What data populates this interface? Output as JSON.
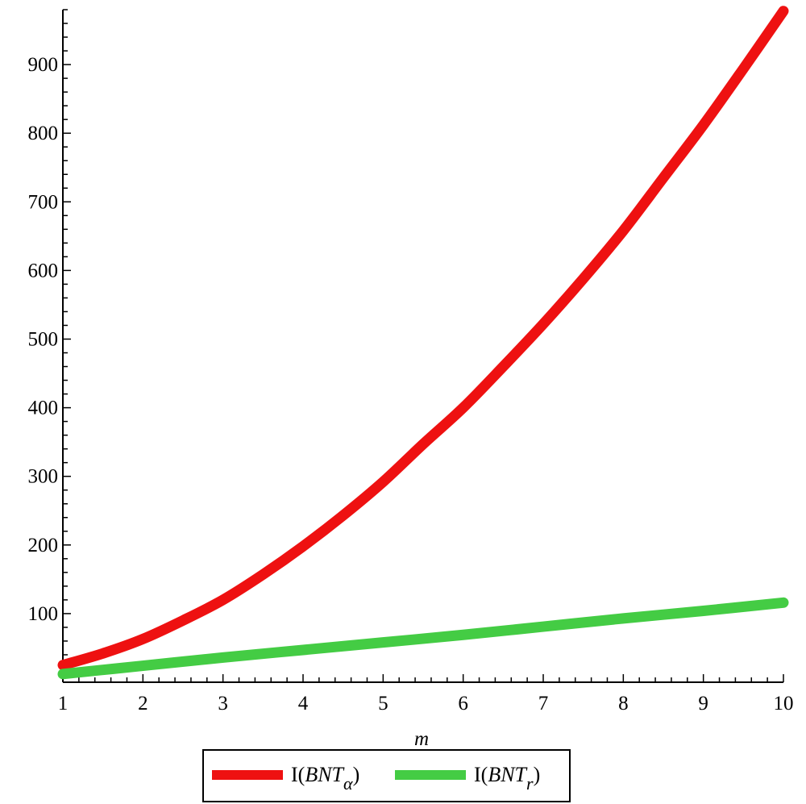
{
  "chart_data": {
    "type": "line",
    "xlabel": "m",
    "ylabel": "",
    "xlim": [
      1,
      10
    ],
    "ylim": [
      0,
      980
    ],
    "xticks": [
      1,
      2,
      3,
      4,
      5,
      6,
      7,
      8,
      9,
      10
    ],
    "yticks": [
      100,
      200,
      300,
      400,
      500,
      600,
      700,
      800,
      900
    ],
    "grid": false,
    "legend_position": "bottom-center",
    "series": [
      {
        "name": "I(BNT_α)",
        "name_main": "I(",
        "name_italic": "BNT",
        "name_sub": "α",
        "name_close": ")",
        "color": "#ee1111",
        "x": [
          1,
          1.5,
          2,
          2.5,
          3,
          3.5,
          4,
          4.5,
          5,
          5.5,
          6,
          6.5,
          7,
          7.5,
          8,
          8.5,
          9,
          9.5,
          10
        ],
        "y": [
          25,
          42,
          63,
          90,
          120,
          157,
          198,
          243,
          292,
          347,
          400,
          460,
          522,
          588,
          658,
          735,
          812,
          894,
          978
        ]
      },
      {
        "name": "I(BNT_r)",
        "name_main": "I(",
        "name_italic": "BNT",
        "name_sub": "r",
        "name_close": ")",
        "color": "#44cc44",
        "x": [
          1,
          2,
          3,
          4,
          5,
          6,
          7,
          8,
          9,
          10
        ],
        "y": [
          12,
          24,
          36,
          47,
          58,
          69,
          81,
          93,
          104,
          116
        ]
      }
    ]
  }
}
